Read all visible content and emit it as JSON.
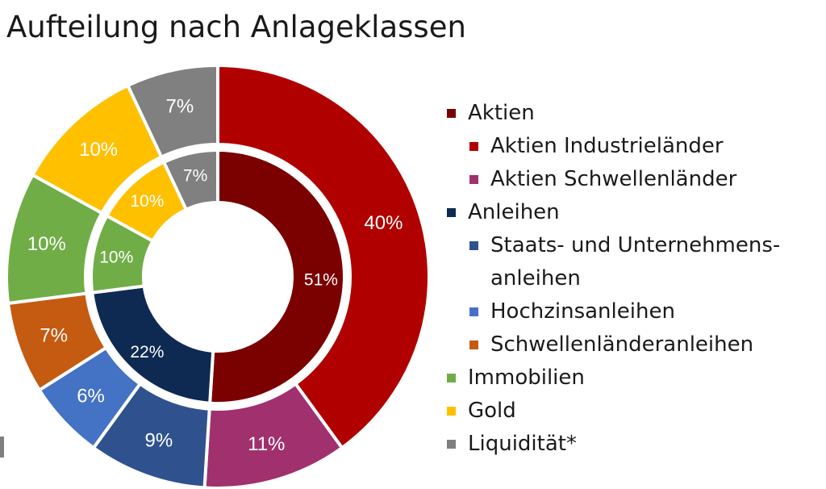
{
  "title": "Aufteilung nach Anlageklassen",
  "chart_data": {
    "type": "pie",
    "subtype": "nested-donut",
    "inner_ring": [
      {
        "label": "Aktien",
        "value": 51,
        "display": "51%",
        "color": "#7b0000"
      },
      {
        "label": "Anleihen",
        "value": 22,
        "display": "22%",
        "color": "#0e2a52"
      },
      {
        "label": "Immobilien",
        "value": 10,
        "display": "10%",
        "color": "#70ad47"
      },
      {
        "label": "Gold",
        "value": 10,
        "display": "10%",
        "color": "#ffc000"
      },
      {
        "label": "Liquidität*",
        "value": 7,
        "display": "7%",
        "color": "#808080"
      }
    ],
    "outer_ring": [
      {
        "label": "Aktien Industrieländer",
        "value": 40,
        "display": "40%",
        "color": "#b00000"
      },
      {
        "label": "Aktien Schwellenländer",
        "value": 11,
        "display": "11%",
        "color": "#a0306e"
      },
      {
        "label": "Staats- und Unternehmensanleihen",
        "value": 9,
        "display": "9%",
        "color": "#2f528f"
      },
      {
        "label": "Hochzinsanleihen",
        "value": 6,
        "display": "6%",
        "color": "#4472c4"
      },
      {
        "label": "Schwellenländeranleihen",
        "value": 7,
        "display": "7%",
        "color": "#c55a11"
      },
      {
        "label": "Immobilien",
        "value": 10,
        "display": "10%",
        "color": "#70ad47"
      },
      {
        "label": "Gold",
        "value": 10,
        "display": "10%",
        "color": "#ffc000"
      },
      {
        "label": "Liquidität*",
        "value": 7,
        "display": "7%",
        "color": "#808080"
      }
    ],
    "legend_position": "right"
  },
  "legend": [
    {
      "label": "Aktien",
      "color": "#7b0000",
      "level": 1
    },
    {
      "label": "Aktien Industrieländer",
      "color": "#b00000",
      "level": 2
    },
    {
      "label": "Aktien Schwellenländer",
      "color": "#a0306e",
      "level": 2
    },
    {
      "label": "Anleihen",
      "color": "#0e2a52",
      "level": 1
    },
    {
      "label": "Staats- und Unternehmens-",
      "color": "#2f528f",
      "level": 2
    },
    {
      "label": "anleihen",
      "color": null,
      "level": 2
    },
    {
      "label": "Hochzinsanleihen",
      "color": "#4472c4",
      "level": 2
    },
    {
      "label": "Schwellenländeranleihen",
      "color": "#c55a11",
      "level": 2
    },
    {
      "label": "Immobilien",
      "color": "#70ad47",
      "level": 1
    },
    {
      "label": "Gold",
      "color": "#ffc000",
      "level": 1
    },
    {
      "label": "Liquidität*",
      "color": "#808080",
      "level": 1
    }
  ]
}
